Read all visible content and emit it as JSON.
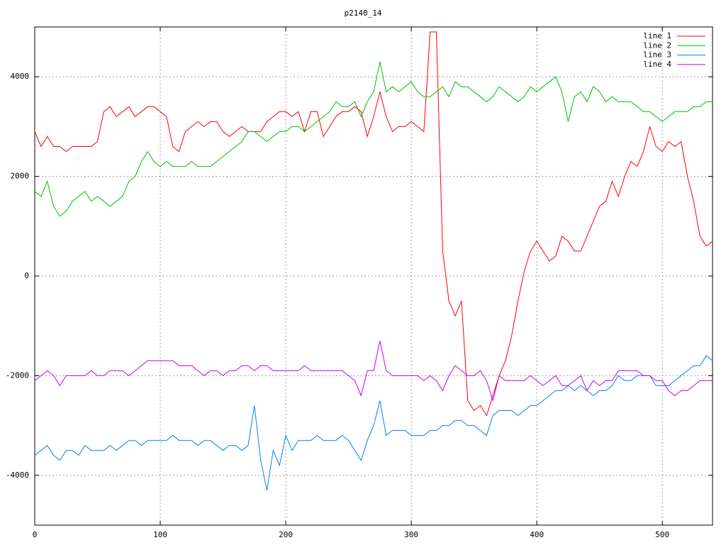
{
  "chart_data": {
    "type": "line",
    "title": "p2140_14",
    "x": [
      0,
      5,
      10,
      15,
      20,
      25,
      30,
      35,
      40,
      45,
      50,
      55,
      60,
      65,
      70,
      75,
      80,
      85,
      90,
      95,
      100,
      105,
      110,
      115,
      120,
      125,
      130,
      135,
      140,
      145,
      150,
      155,
      160,
      165,
      170,
      175,
      180,
      185,
      190,
      195,
      200,
      205,
      210,
      215,
      220,
      225,
      230,
      235,
      240,
      245,
      250,
      255,
      260,
      265,
      270,
      275,
      280,
      285,
      290,
      295,
      300,
      305,
      310,
      315,
      320,
      325,
      330,
      335,
      340,
      345,
      350,
      355,
      360,
      365,
      370,
      375,
      380,
      385,
      390,
      395,
      400,
      405,
      410,
      415,
      420,
      425,
      430,
      435,
      440,
      445,
      450,
      455,
      460,
      465,
      470,
      475,
      480,
      485,
      490,
      495,
      500,
      505,
      510,
      515,
      520,
      525,
      530,
      535,
      540
    ],
    "series": [
      {
        "name": "line 1",
        "color": "#ff0000",
        "values": [
          2900,
          2600,
          2800,
          2600,
          2600,
          2500,
          2600,
          2600,
          2600,
          2600,
          2700,
          3300,
          3400,
          3200,
          3300,
          3400,
          3200,
          3300,
          3400,
          3400,
          3300,
          3200,
          2600,
          2500,
          2900,
          3000,
          3100,
          3000,
          3100,
          3100,
          2900,
          2800,
          2900,
          3000,
          2900,
          2900,
          2900,
          3100,
          3200,
          3300,
          3300,
          3200,
          3300,
          2900,
          3300,
          3300,
          2800,
          3000,
          3200,
          3300,
          3300,
          3400,
          3300,
          2800,
          3200,
          3700,
          3200,
          2900,
          3000,
          3000,
          3100,
          3000,
          2900,
          4900,
          4900,
          500,
          -500,
          -800,
          -500,
          -2500,
          -2700,
          -2600,
          -2800,
          -2400,
          -2000,
          -1700,
          -1200,
          -500,
          100,
          500,
          700,
          500,
          300,
          400,
          800,
          700,
          500,
          500,
          800,
          1100,
          1400,
          1500,
          1900,
          1600,
          2000,
          2300,
          2200,
          2500,
          3000,
          2600,
          2500,
          2700,
          2600,
          2700,
          2000,
          1500,
          800,
          600,
          700
        ]
      },
      {
        "name": "line 2",
        "color": "#00c000",
        "values": [
          1700,
          1600,
          1900,
          1400,
          1200,
          1300,
          1500,
          1600,
          1700,
          1500,
          1600,
          1500,
          1400,
          1500,
          1600,
          1900,
          2000,
          2300,
          2500,
          2300,
          2200,
          2300,
          2200,
          2200,
          2200,
          2300,
          2200,
          2200,
          2200,
          2300,
          2400,
          2500,
          2600,
          2700,
          2900,
          2900,
          2800,
          2700,
          2800,
          2900,
          2900,
          3000,
          3000,
          2900,
          3000,
          3100,
          3200,
          3300,
          3500,
          3400,
          3400,
          3500,
          3200,
          3500,
          3700,
          4300,
          3700,
          3800,
          3700,
          3800,
          3900,
          3700,
          3600,
          3600,
          3700,
          3800,
          3600,
          3900,
          3800,
          3800,
          3700,
          3600,
          3500,
          3600,
          3800,
          3700,
          3600,
          3500,
          3600,
          3800,
          3700,
          3800,
          3900,
          4000,
          3700,
          3100,
          3600,
          3700,
          3500,
          3800,
          3700,
          3500,
          3600,
          3500,
          3500,
          3500,
          3400,
          3300,
          3300,
          3200,
          3100,
          3200,
          3300,
          3300,
          3300,
          3400,
          3400,
          3500,
          3500
        ]
      },
      {
        "name": "line 3",
        "color": "#0080ff",
        "values": [
          -3600,
          -3500,
          -3400,
          -3600,
          -3700,
          -3500,
          -3500,
          -3600,
          -3400,
          -3500,
          -3500,
          -3500,
          -3400,
          -3500,
          -3400,
          -3300,
          -3300,
          -3400,
          -3300,
          -3300,
          -3300,
          -3300,
          -3200,
          -3300,
          -3300,
          -3300,
          -3400,
          -3300,
          -3300,
          -3400,
          -3500,
          -3400,
          -3400,
          -3500,
          -3400,
          -2600,
          -3700,
          -4300,
          -3500,
          -3800,
          -3200,
          -3500,
          -3300,
          -3300,
          -3300,
          -3200,
          -3300,
          -3300,
          -3300,
          -3200,
          -3300,
          -3500,
          -3700,
          -3300,
          -3000,
          -2500,
          -3200,
          -3100,
          -3100,
          -3100,
          -3200,
          -3200,
          -3200,
          -3100,
          -3100,
          -3000,
          -3000,
          -2900,
          -2900,
          -3000,
          -3000,
          -3100,
          -3200,
          -2800,
          -2700,
          -2700,
          -2700,
          -2800,
          -2700,
          -2600,
          -2600,
          -2500,
          -2400,
          -2300,
          -2300,
          -2200,
          -2300,
          -2200,
          -2300,
          -2400,
          -2300,
          -2300,
          -2200,
          -2000,
          -2100,
          -2100,
          -2000,
          -2000,
          -2000,
          -2200,
          -2200,
          -2200,
          -2100,
          -2000,
          -1900,
          -1800,
          -1800,
          -1600,
          -1700
        ]
      },
      {
        "name": "line 4",
        "color": "#c000ff",
        "values": [
          -2100,
          -2000,
          -1900,
          -2000,
          -2200,
          -2000,
          -2000,
          -2000,
          -2000,
          -1900,
          -2000,
          -2000,
          -1900,
          -1900,
          -1900,
          -2000,
          -1900,
          -1800,
          -1700,
          -1700,
          -1700,
          -1700,
          -1700,
          -1800,
          -1800,
          -1800,
          -1900,
          -2000,
          -1900,
          -1900,
          -2000,
          -1900,
          -1900,
          -1800,
          -1800,
          -1900,
          -1800,
          -1800,
          -1900,
          -1900,
          -1900,
          -1900,
          -1900,
          -1800,
          -1900,
          -1900,
          -1900,
          -1900,
          -1900,
          -1900,
          -2000,
          -2100,
          -2400,
          -1900,
          -1900,
          -1300,
          -1900,
          -2000,
          -2000,
          -2000,
          -2000,
          -2000,
          -2100,
          -2000,
          -2100,
          -2300,
          -2000,
          -1800,
          -1900,
          -2000,
          -2000,
          -1900,
          -2100,
          -2500,
          -2000,
          -2100,
          -2100,
          -2100,
          -2100,
          -2000,
          -2100,
          -2200,
          -2100,
          -2000,
          -2200,
          -2200,
          -2100,
          -2000,
          -2300,
          -2100,
          -2200,
          -2100,
          -2100,
          -1900,
          -1900,
          -1900,
          -1900,
          -2000,
          -2000,
          -2100,
          -2100,
          -2300,
          -2400,
          -2300,
          -2300,
          -2200,
          -2100,
          -2100,
          -2100
        ]
      }
    ],
    "xlim": [
      0,
      540
    ],
    "ylim": [
      -5000,
      5000
    ],
    "xticks": [
      0,
      100,
      200,
      300,
      400,
      500
    ],
    "yticks": [
      -4000,
      -2000,
      0,
      2000,
      4000
    ],
    "grid": true,
    "legend": "top-right"
  }
}
